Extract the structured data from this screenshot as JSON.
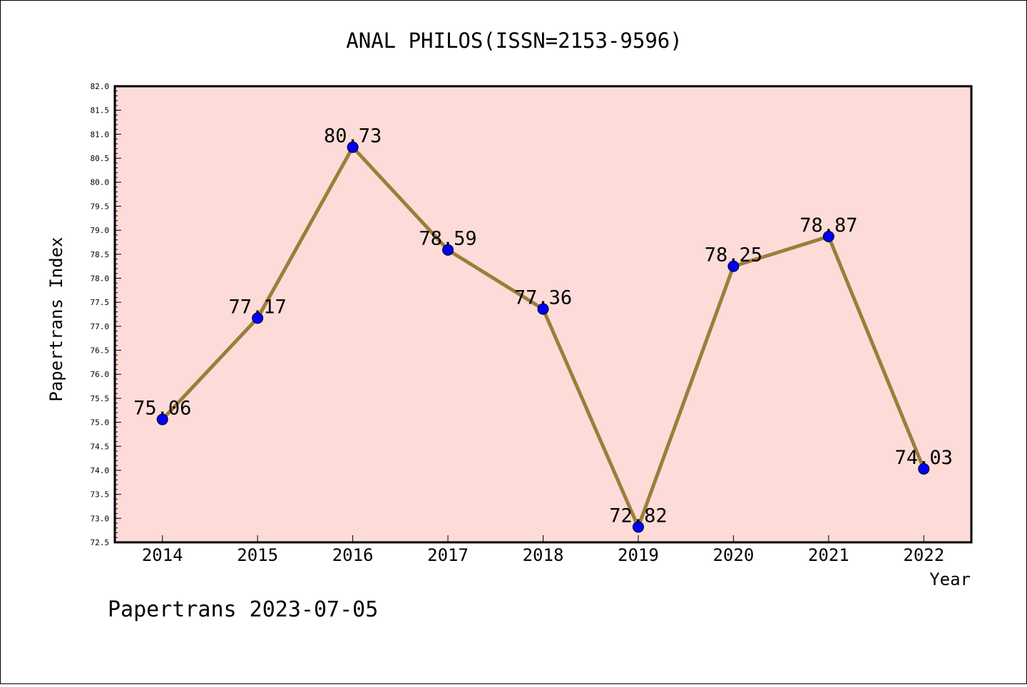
{
  "chart_data": {
    "type": "line",
    "title": "ANAL PHILOS(ISSN=2153-9596)",
    "xlabel": "Year",
    "ylabel": "Papertrans Index",
    "categories": [
      "2014",
      "2015",
      "2016",
      "2017",
      "2018",
      "2019",
      "2020",
      "2021",
      "2022"
    ],
    "series": [
      {
        "name": "Papertrans Index",
        "values": [
          75.06,
          77.17,
          80.73,
          78.59,
          77.36,
          72.82,
          78.25,
          78.87,
          74.03
        ]
      }
    ],
    "data_labels": [
      "75.06",
      "77.17",
      "80.73",
      "78.59",
      "77.36",
      "72.82",
      "78.25",
      "78.87",
      "74.03"
    ],
    "ylim": [
      72.5,
      82.0
    ],
    "yticks": [
      "72.5",
      "73.0",
      "73.5",
      "74.0",
      "74.5",
      "75.0",
      "75.5",
      "76.0",
      "76.5",
      "77.0",
      "77.5",
      "78.0",
      "78.5",
      "79.0",
      "79.5",
      "80.0",
      "80.5",
      "81.0",
      "81.5",
      "82.0"
    ],
    "grid": false,
    "footer": "Papertrans 2023-07-05",
    "colors": {
      "plot_bg": "#fddbd8",
      "line": "#9a7e3a",
      "marker": "#0000ff"
    }
  }
}
